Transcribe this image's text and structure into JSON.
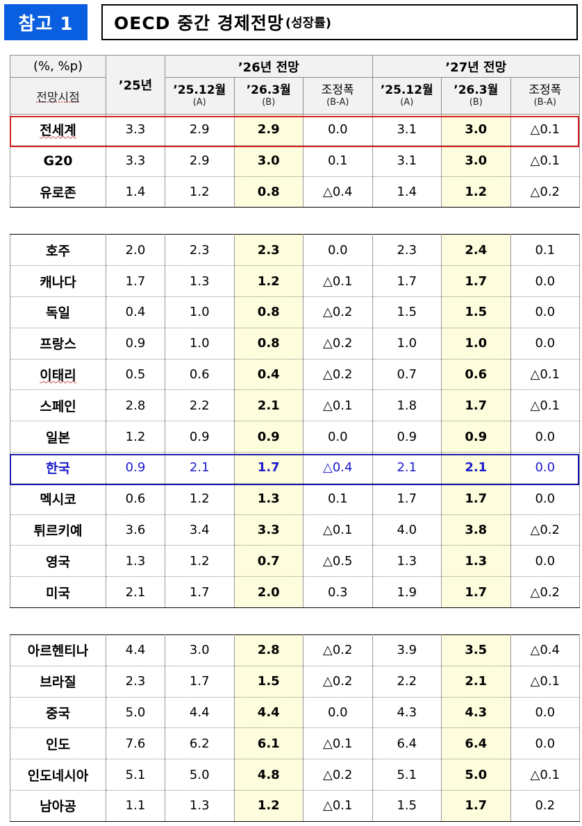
{
  "header": {
    "badge": "참고 1",
    "title": "OECD 중간 경제전망",
    "title_sub": "(성장률)"
  },
  "table": {
    "unit": "(%, %p)",
    "basis_label": "전망시점",
    "col_2025": "’25년",
    "group_2026": "’26년 전망",
    "group_2027": "’27년 전망",
    "sub_a_label": "’25.12월",
    "sub_a_note": "(A)",
    "sub_b_label": "’26.3월",
    "sub_b_note": "(B)",
    "sub_adj_label": "조정폭",
    "sub_adj_note": "(B-A)",
    "groups": [
      [
        {
          "country": "전세계",
          "v25": "3.3",
          "a26": "2.9",
          "b26": "2.9",
          "d26": "0.0",
          "a27": "3.1",
          "b27": "3.0",
          "d27": "△0.1"
        },
        {
          "country": "G20",
          "v25": "3.3",
          "a26": "2.9",
          "b26": "3.0",
          "d26": "0.1",
          "a27": "3.1",
          "b27": "3.0",
          "d27": "△0.1"
        },
        {
          "country": "유로존",
          "v25": "1.4",
          "a26": "1.2",
          "b26": "0.8",
          "d26": "△0.4",
          "a27": "1.4",
          "b27": "1.2",
          "d27": "△0.2"
        }
      ],
      [
        {
          "country": "호주",
          "v25": "2.0",
          "a26": "2.3",
          "b26": "2.3",
          "d26": "0.0",
          "a27": "2.3",
          "b27": "2.4",
          "d27": "0.1"
        },
        {
          "country": "캐나다",
          "v25": "1.7",
          "a26": "1.3",
          "b26": "1.2",
          "d26": "△0.1",
          "a27": "1.7",
          "b27": "1.7",
          "d27": "0.0"
        },
        {
          "country": "독일",
          "v25": "0.4",
          "a26": "1.0",
          "b26": "0.8",
          "d26": "△0.2",
          "a27": "1.5",
          "b27": "1.5",
          "d27": "0.0"
        },
        {
          "country": "프랑스",
          "v25": "0.9",
          "a26": "1.0",
          "b26": "0.8",
          "d26": "△0.2",
          "a27": "1.0",
          "b27": "1.0",
          "d27": "0.0"
        },
        {
          "country": "이태리",
          "v25": "0.5",
          "a26": "0.6",
          "b26": "0.4",
          "d26": "△0.2",
          "a27": "0.7",
          "b27": "0.6",
          "d27": "△0.1"
        },
        {
          "country": "스페인",
          "v25": "2.8",
          "a26": "2.2",
          "b26": "2.1",
          "d26": "△0.1",
          "a27": "1.8",
          "b27": "1.7",
          "d27": "△0.1"
        },
        {
          "country": "일본",
          "v25": "1.2",
          "a26": "0.9",
          "b26": "0.9",
          "d26": "0.0",
          "a27": "0.9",
          "b27": "0.9",
          "d27": "0.0"
        },
        {
          "country": "한국",
          "v25": "0.9",
          "a26": "2.1",
          "b26": "1.7",
          "d26": "△0.4",
          "a27": "2.1",
          "b27": "2.1",
          "d27": "0.0"
        },
        {
          "country": "멕시코",
          "v25": "0.6",
          "a26": "1.2",
          "b26": "1.3",
          "d26": "0.1",
          "a27": "1.7",
          "b27": "1.7",
          "d27": "0.0"
        },
        {
          "country": "튀르키예",
          "v25": "3.6",
          "a26": "3.4",
          "b26": "3.3",
          "d26": "△0.1",
          "a27": "4.0",
          "b27": "3.8",
          "d27": "△0.2"
        },
        {
          "country": "영국",
          "v25": "1.3",
          "a26": "1.2",
          "b26": "0.7",
          "d26": "△0.5",
          "a27": "1.3",
          "b27": "1.3",
          "d27": "0.0"
        },
        {
          "country": "미국",
          "v25": "2.1",
          "a26": "1.7",
          "b26": "2.0",
          "d26": "0.3",
          "a27": "1.9",
          "b27": "1.7",
          "d27": "△0.2"
        }
      ],
      [
        {
          "country": "아르헨티나",
          "v25": "4.4",
          "a26": "3.0",
          "b26": "2.8",
          "d26": "△0.2",
          "a27": "3.9",
          "b27": "3.5",
          "d27": "△0.4"
        },
        {
          "country": "브라질",
          "v25": "2.3",
          "a26": "1.7",
          "b26": "1.5",
          "d26": "△0.2",
          "a27": "2.2",
          "b27": "2.1",
          "d27": "△0.1"
        },
        {
          "country": "중국",
          "v25": "5.0",
          "a26": "4.4",
          "b26": "4.4",
          "d26": "0.0",
          "a27": "4.3",
          "b27": "4.3",
          "d27": "0.0"
        },
        {
          "country": "인도",
          "v25": "7.6",
          "a26": "6.2",
          "b26": "6.1",
          "d26": "△0.1",
          "a27": "6.4",
          "b27": "6.4",
          "d27": "0.0"
        },
        {
          "country": "인도네시아",
          "v25": "5.1",
          "a26": "5.0",
          "b26": "4.8",
          "d26": "△0.2",
          "a27": "5.1",
          "b27": "5.0",
          "d27": "△0.1"
        },
        {
          "country": "남아공",
          "v25": "1.1",
          "a26": "1.3",
          "b26": "1.2",
          "d26": "△0.1",
          "a27": "1.5",
          "b27": "1.7",
          "d27": "0.2"
        }
      ]
    ]
  },
  "colors": {
    "badge": "#0a5fe0",
    "highlight_fill": "#fdfcdd",
    "world_box": "#d42020",
    "korea_box": "#1a1aaa",
    "korea_text": "#1a1acc"
  }
}
